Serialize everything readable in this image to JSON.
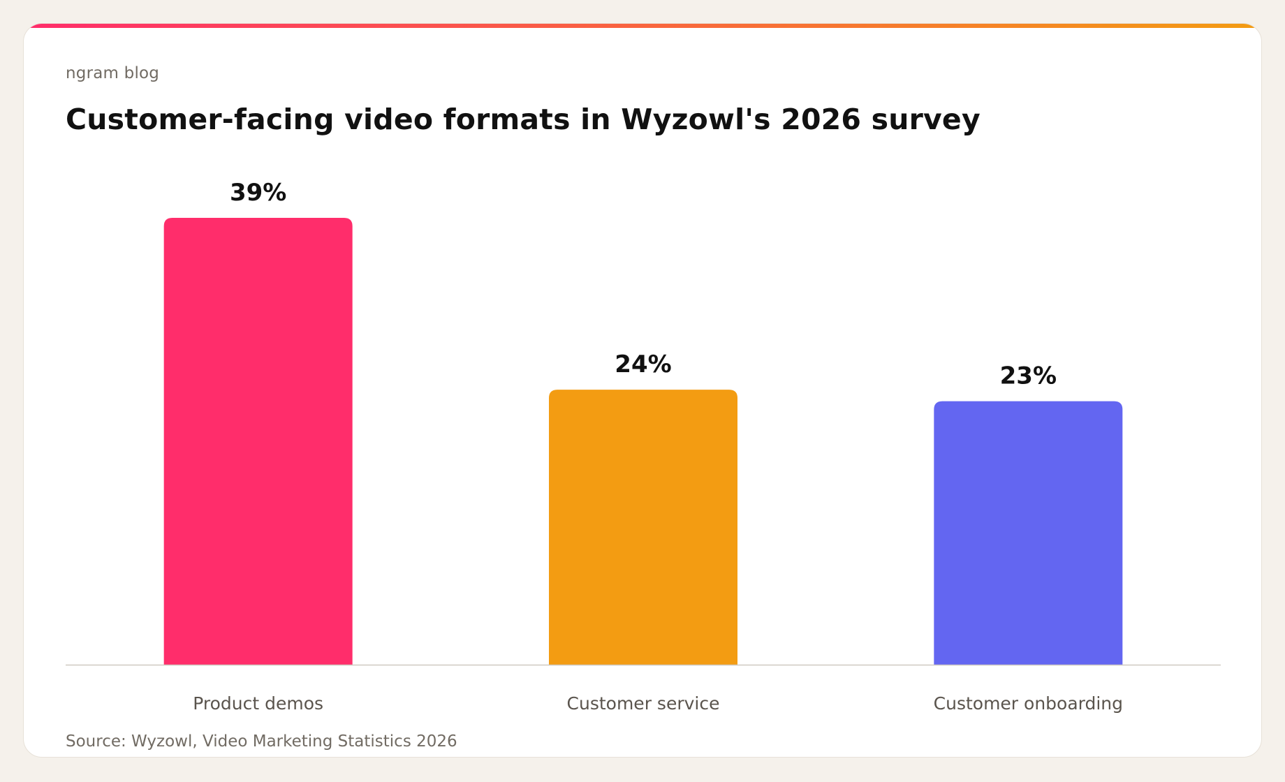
{
  "header": {
    "brand": "ngram blog"
  },
  "colors": {
    "accent_gradient": [
      "#ff2d6b",
      "#f39c12"
    ],
    "page_background": "#f5f1eb",
    "card_background": "#ffffff",
    "baseline": "#cfc9c1",
    "bars": [
      "#ff2d6b",
      "#f39c12",
      "#6366f1"
    ],
    "value_label": "#111111",
    "category_label": "#5a544d"
  },
  "chart_data": {
    "type": "bar",
    "title": "Customer-facing video formats in Wyzowl's 2026 survey",
    "categories": [
      "Product demos",
      "Customer service",
      "Customer onboarding"
    ],
    "values": [
      39,
      24,
      23
    ],
    "value_labels": [
      "39%",
      "24%",
      "23%"
    ],
    "xlabel": "",
    "ylabel": "",
    "ylim": [
      0,
      39
    ],
    "grid": false,
    "legend": "none"
  },
  "footer": {
    "source": "Source: Wyzowl, Video Marketing Statistics 2026"
  }
}
